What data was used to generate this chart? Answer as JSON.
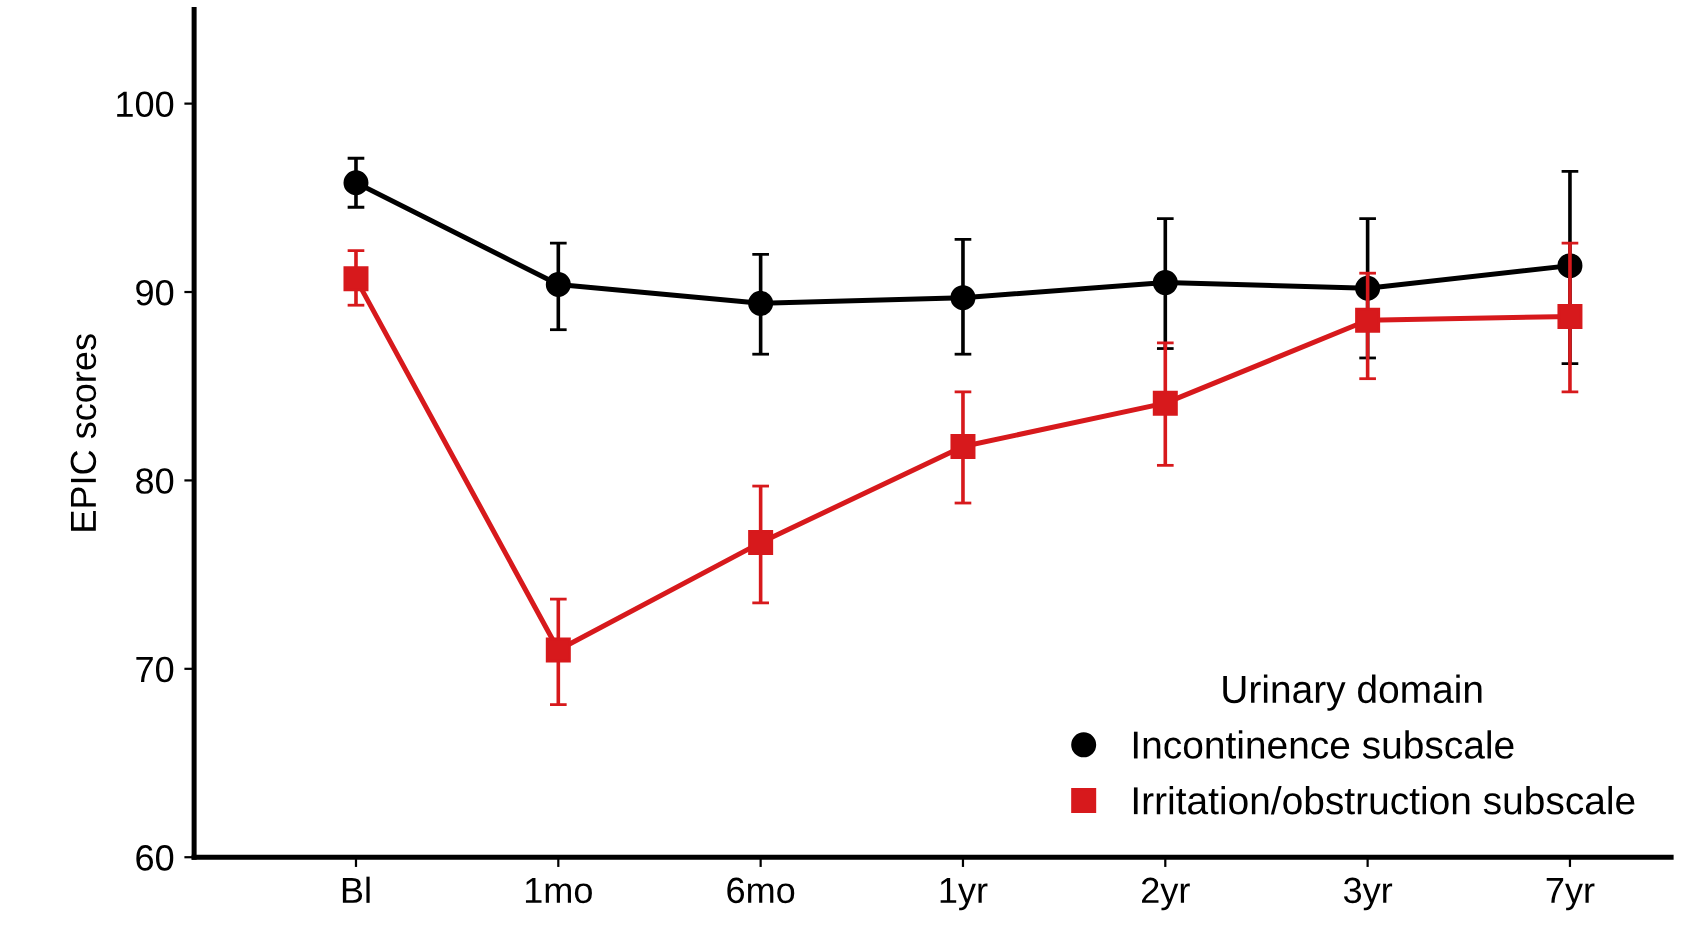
{
  "chart_data": {
    "type": "line",
    "ylabel": "EPIC scores",
    "legend_title": "Urinary domain",
    "legend": "bottom right",
    "categories": [
      "Bl",
      "1mo",
      "6mo",
      "1yr",
      "2yr",
      "3yr",
      "7yr"
    ],
    "ylim": [
      60,
      105
    ],
    "yticks": [
      60,
      70,
      80,
      90,
      100
    ],
    "grid": false,
    "line_style": "solid",
    "series": [
      {
        "name": "Incontinence subscale",
        "color": "#000000",
        "marker": "circle",
        "values": [
          95.8,
          90.4,
          89.4,
          89.7,
          90.5,
          90.2,
          91.4
        ],
        "errors": [
          [
            94.5,
            97.1
          ],
          [
            88.0,
            92.6
          ],
          [
            86.7,
            92.0
          ],
          [
            86.7,
            92.8
          ],
          [
            87.0,
            93.9
          ],
          [
            86.5,
            93.9
          ],
          [
            86.2,
            96.4
          ]
        ]
      },
      {
        "name": "Irritation/obstruction subscale",
        "color": "#d7191c",
        "marker": "square",
        "values": [
          90.7,
          71.0,
          76.7,
          81.8,
          84.1,
          88.5,
          88.7
        ],
        "errors": [
          [
            89.3,
            92.2
          ],
          [
            68.1,
            73.7
          ],
          [
            73.5,
            79.7
          ],
          [
            78.8,
            84.7
          ],
          [
            80.8,
            87.3
          ],
          [
            85.4,
            91.0
          ],
          [
            84.7,
            92.6
          ]
        ]
      }
    ]
  }
}
